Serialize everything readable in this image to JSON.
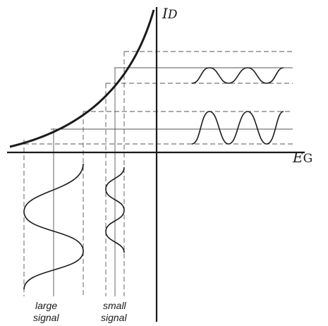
{
  "axes": {
    "y_label": "I",
    "y_label_sub": "D",
    "x_label": "E",
    "x_label_sub": "G"
  },
  "captions": {
    "large_line1": "large",
    "large_line2": "signal",
    "small_line1": "small",
    "small_line2": "signal"
  },
  "colors": {
    "ink": "#1a1a1a",
    "dashed": "#555555"
  }
}
